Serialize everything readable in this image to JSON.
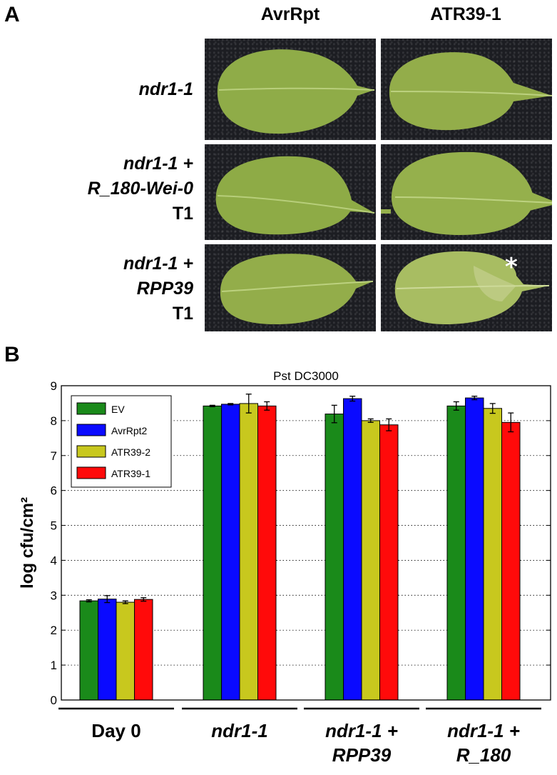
{
  "figure": {
    "panel_a": {
      "letter": "A",
      "columns": [
        "AvrRpt",
        "ATR39-1"
      ],
      "rows": [
        {
          "italic": [
            "ndr1-1"
          ],
          "plain": ""
        },
        {
          "italic": [
            "ndr1-1 +",
            "R_180-Wei-0"
          ],
          "plain": "T1"
        },
        {
          "italic": [
            "ndr1-1 +",
            "RPP39"
          ],
          "plain": "T1"
        }
      ],
      "marker": "*"
    },
    "panel_b": {
      "letter": "B"
    }
  },
  "chart_data": {
    "type": "bar",
    "title": "Pst DC3000",
    "ylabel": "log cfu/cm²",
    "xlabel": "",
    "ylim": [
      0,
      9
    ],
    "yticks": [
      0,
      1,
      2,
      3,
      4,
      5,
      6,
      7,
      8,
      9
    ],
    "grid": "horizontal-dotted",
    "legend_position": "top-left",
    "categories": [
      {
        "lines": [
          "Day 0"
        ],
        "italic": false
      },
      {
        "lines": [
          "ndr1-1"
        ],
        "italic": true
      },
      {
        "lines": [
          "ndr1-1 +",
          "RPP39"
        ],
        "italic": true
      },
      {
        "lines": [
          "ndr1-1 +",
          "R_180"
        ],
        "italic": true
      }
    ],
    "series": [
      {
        "name": "EV",
        "color": "#1a8a1a",
        "values": [
          2.84,
          8.42,
          8.19,
          8.42
        ],
        "errors": [
          0.03,
          0.02,
          0.25,
          0.12
        ]
      },
      {
        "name": "AvrRpt2",
        "color": "#0a0aff",
        "values": [
          2.89,
          8.47,
          8.63,
          8.65
        ],
        "errors": [
          0.1,
          0.02,
          0.07,
          0.05
        ]
      },
      {
        "name": "ATR39-2",
        "color": "#c8c81e",
        "values": [
          2.8,
          8.49,
          8.0,
          8.35
        ],
        "errors": [
          0.04,
          0.27,
          0.05,
          0.14
        ]
      },
      {
        "name": "ATR39-1",
        "color": "#ff0a0a",
        "values": [
          2.88,
          8.42,
          7.88,
          7.95
        ],
        "errors": [
          0.05,
          0.12,
          0.17,
          0.27
        ]
      }
    ]
  }
}
